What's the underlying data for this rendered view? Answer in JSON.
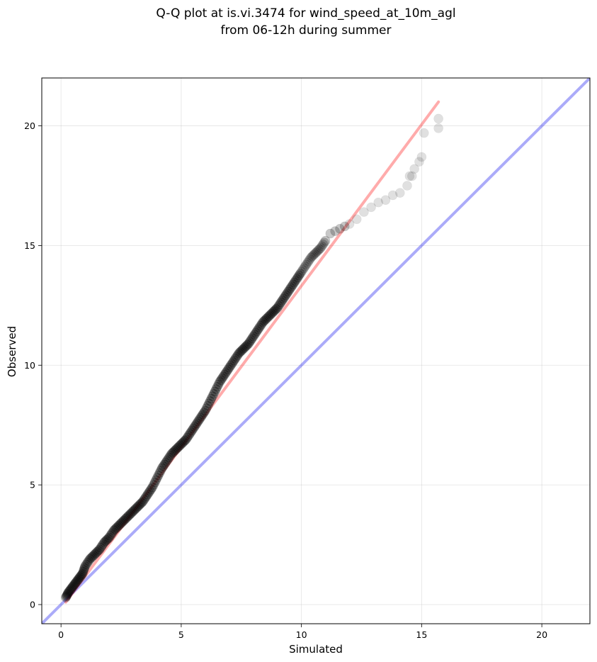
{
  "chart_data": {
    "type": "scatter",
    "title_lines": [
      "Q-Q plot at is.vi.3474 for wind_speed_at_10m_agl",
      "from 06-12h during summer"
    ],
    "xlabel": "Simulated",
    "ylabel": "Observed",
    "xlim": [
      -0.8,
      22
    ],
    "ylim": [
      -0.8,
      22
    ],
    "xticks": [
      0,
      5,
      10,
      15,
      20
    ],
    "yticks": [
      0,
      5,
      10,
      15,
      20
    ],
    "grid": true,
    "point_color": "#000000",
    "reference_lines": [
      {
        "kind": "identity",
        "color": "#0000ee",
        "x": [
          -0.8,
          22
        ],
        "y": [
          -0.8,
          22
        ]
      },
      {
        "kind": "fit",
        "color": "#ff0000",
        "x": [
          0.2,
          15.7
        ],
        "y": [
          0.1,
          21.0
        ]
      }
    ],
    "quantile_points": {
      "x": [
        0.2,
        0.3,
        0.45,
        0.6,
        0.75,
        0.9,
        1.0,
        1.2,
        1.4,
        1.6,
        1.8,
        2.0,
        2.2,
        2.4,
        2.6,
        2.8,
        3.0,
        3.2,
        3.4,
        3.6,
        3.8,
        4.0,
        4.2,
        4.4,
        4.6,
        4.8,
        5.0,
        5.2,
        5.4,
        5.6,
        5.8,
        6.0,
        6.2,
        6.4,
        6.6,
        6.8,
        7.0,
        7.2,
        7.4,
        7.6,
        7.8,
        8.0,
        8.2,
        8.4,
        8.6,
        8.8,
        9.0,
        9.2,
        9.4,
        9.6,
        9.8,
        10.0,
        10.2,
        10.4,
        10.6,
        10.8,
        11.0,
        11.2,
        11.4,
        11.6,
        11.8,
        12.0,
        12.3,
        12.6,
        12.9,
        13.2,
        13.5,
        13.8,
        14.1,
        14.4,
        14.5,
        14.6,
        14.7,
        14.9,
        15.0,
        15.1,
        15.7,
        15.7
      ],
      "y": [
        0.3,
        0.5,
        0.7,
        0.9,
        1.1,
        1.3,
        1.6,
        1.9,
        2.1,
        2.3,
        2.6,
        2.8,
        3.1,
        3.3,
        3.5,
        3.7,
        3.9,
        4.1,
        4.3,
        4.6,
        4.9,
        5.3,
        5.7,
        6.0,
        6.3,
        6.5,
        6.7,
        6.9,
        7.2,
        7.5,
        7.8,
        8.1,
        8.5,
        8.9,
        9.3,
        9.6,
        9.9,
        10.2,
        10.5,
        10.7,
        10.9,
        11.2,
        11.5,
        11.8,
        12.0,
        12.2,
        12.4,
        12.7,
        13.0,
        13.3,
        13.6,
        13.9,
        14.2,
        14.5,
        14.7,
        14.9,
        15.2,
        15.5,
        15.6,
        15.7,
        15.8,
        15.9,
        16.1,
        16.4,
        16.6,
        16.8,
        16.9,
        17.1,
        17.2,
        17.5,
        17.9,
        17.9,
        18.2,
        18.5,
        18.7,
        19.7,
        20.3,
        19.9
      ]
    }
  }
}
